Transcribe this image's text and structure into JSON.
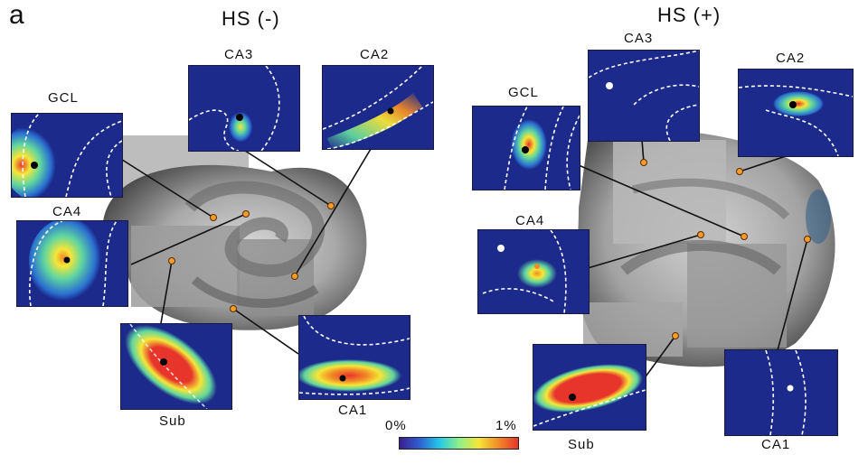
{
  "panel_letter": "a",
  "conditions": {
    "left": "HS (-)",
    "right": "HS (+)"
  },
  "left_regions": {
    "gcl": "GCL",
    "ca3": "CA3",
    "ca2": "CA2",
    "ca4": "CA4",
    "sub": "Sub",
    "ca1": "CA1"
  },
  "right_regions": {
    "gcl": "GCL",
    "ca3": "CA3",
    "ca2": "CA2",
    "ca4": "CA4",
    "sub": "Sub",
    "ca1": "CA1"
  },
  "colorbar": {
    "min_label": "0%",
    "max_label": "1%",
    "colors": [
      "#3b1d8f",
      "#2f5fd1",
      "#22c7e8",
      "#8df08a",
      "#f5e638",
      "#f28a28",
      "#e8352b"
    ]
  },
  "colors": {
    "heat_background": "#1c2a8c",
    "leader_line": "#111111",
    "marker_fill": "#f39c2a",
    "marker_stroke": "#5a2a00",
    "dot_dark": "#000000",
    "dot_light": "#ffffff"
  }
}
